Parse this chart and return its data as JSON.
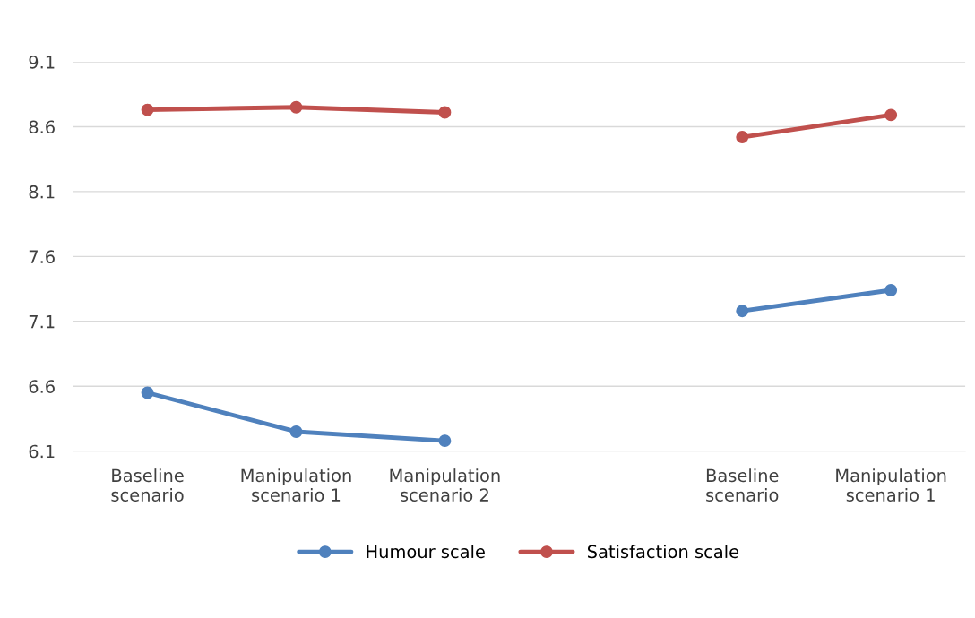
{
  "chart_data": {
    "type": "line",
    "categories": [
      "Baseline scenario",
      "Manipulation scenario 1",
      "Manipulation scenario 2",
      null,
      "Baseline scenario",
      "Manipulation scenario 1"
    ],
    "series": [
      {
        "name": "Humour scale",
        "color": "#4f81bd",
        "values": [
          6.55,
          6.25,
          6.18,
          null,
          7.18,
          7.34
        ]
      },
      {
        "name": "Satisfaction scale",
        "color": "#c0504d",
        "values": [
          8.73,
          8.75,
          8.71,
          null,
          8.52,
          8.69
        ]
      }
    ],
    "ylim": [
      6.1,
      9.1
    ],
    "yticks": [
      6.1,
      6.6,
      7.1,
      7.6,
      8.1,
      8.6,
      9.1
    ],
    "grid": "y",
    "legend": "bottom",
    "marker": "circle",
    "line_style": "solid"
  }
}
